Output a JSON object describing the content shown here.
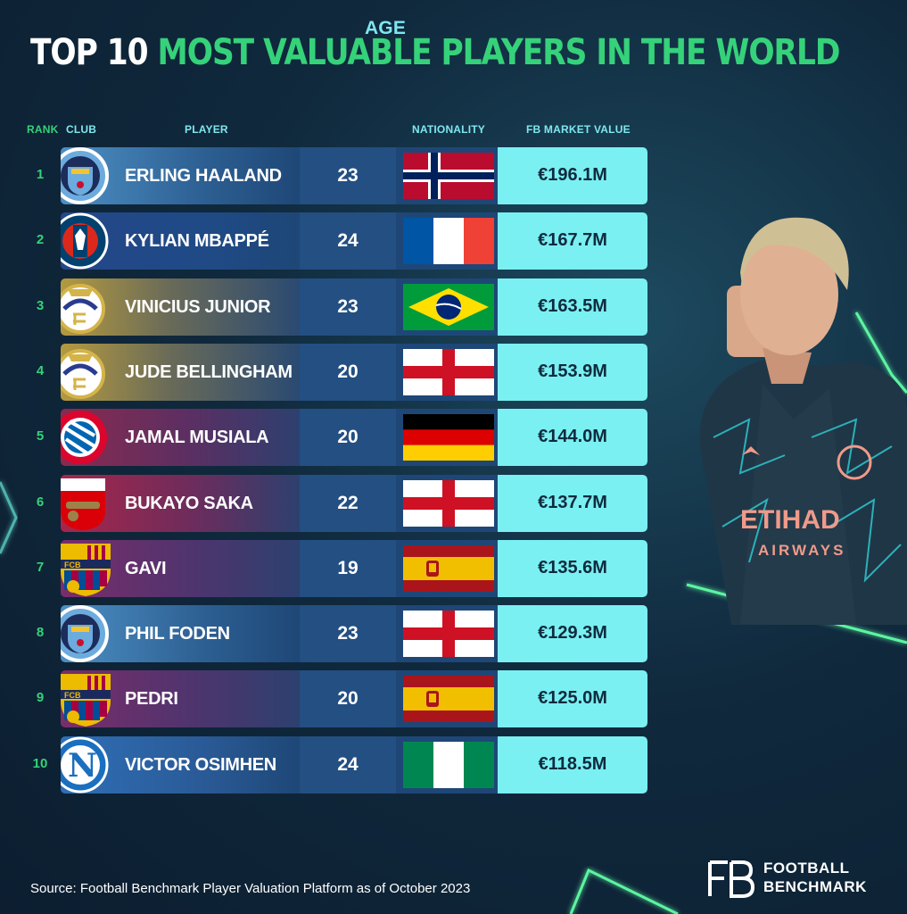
{
  "title": {
    "part1": "TOP 10",
    "part2": "MOST VALUABLE PLAYERS IN THE WORLD"
  },
  "headers": {
    "rank": "RANK",
    "club": "CLUB",
    "player": "PLAYER",
    "age": "AGE",
    "nationality": "NATIONALITY",
    "value": "FB MARKET VALUE"
  },
  "rows": [
    {
      "rank": "1",
      "player": "ERLING HAALAND",
      "age": "23",
      "value": "€196.1M",
      "club": "Manchester City",
      "nationality": "Norway"
    },
    {
      "rank": "2",
      "player": "KYLIAN MBAPPÉ",
      "age": "24",
      "value": "€167.7M",
      "club": "Paris Saint-Germain",
      "nationality": "France"
    },
    {
      "rank": "3",
      "player": "VINICIUS JUNIOR",
      "age": "23",
      "value": "€163.5M",
      "club": "Real Madrid",
      "nationality": "Brazil"
    },
    {
      "rank": "4",
      "player": "JUDE BELLINGHAM",
      "age": "20",
      "value": "€153.9M",
      "club": "Real Madrid",
      "nationality": "England"
    },
    {
      "rank": "5",
      "player": "JAMAL MUSIALA",
      "age": "20",
      "value": "€144.0M",
      "club": "Bayern München",
      "nationality": "Germany"
    },
    {
      "rank": "6",
      "player": "BUKAYO SAKA",
      "age": "22",
      "value": "€137.7M",
      "club": "Arsenal",
      "nationality": "England"
    },
    {
      "rank": "7",
      "player": "GAVI",
      "age": "19",
      "value": "€135.6M",
      "club": "FC Barcelona",
      "nationality": "Spain"
    },
    {
      "rank": "8",
      "player": "PHIL FODEN",
      "age": "23",
      "value": "€129.3M",
      "club": "Manchester City",
      "nationality": "England"
    },
    {
      "rank": "9",
      "player": "PEDRI",
      "age": "20",
      "value": "€125.0M",
      "club": "FC Barcelona",
      "nationality": "Spain"
    },
    {
      "rank": "10",
      "player": "VICTOR OSIMHEN",
      "age": "24",
      "value": "€118.5M",
      "club": "Napoli",
      "nationality": "Nigeria"
    }
  ],
  "source": "Source: Football Benchmark Player Valuation Platform as of October 2023",
  "brand": {
    "line1": "FOOTBALL",
    "line2": "BENCHMARK",
    "mark": "FB"
  },
  "colors": {
    "accent_green": "#35d27a",
    "value_cyan": "#7af0f2",
    "header_cyan": "#7fe7ee"
  }
}
